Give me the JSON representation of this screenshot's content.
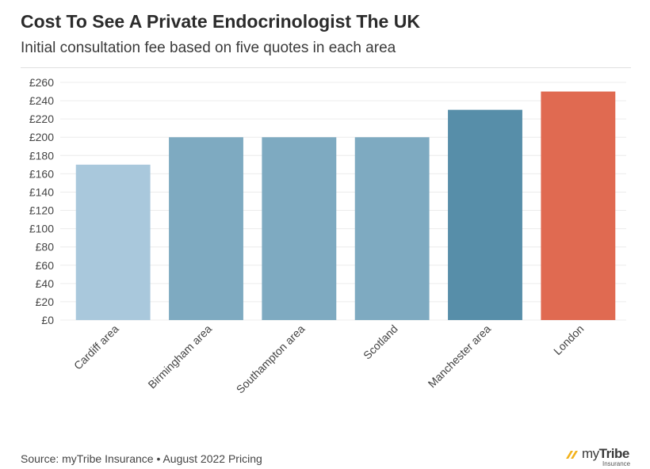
{
  "header": {
    "title": "Cost To See A Private Endocrinologist The UK",
    "subtitle": "Initial consultation fee based on five quotes in each area"
  },
  "footer": {
    "source": "Source: myTribe Insurance • August 2022 Pricing",
    "logo_brand_prefix": "my",
    "logo_brand_suffix": "Tribe",
    "logo_sub": "Insurance"
  },
  "chart_data": {
    "type": "bar",
    "title": "Cost To See A Private Endocrinologist The UK",
    "subtitle": "Initial consultation fee based on five quotes in each area",
    "xlabel": "",
    "ylabel": "",
    "categories": [
      "Cardiff area",
      "Birmingham area",
      "Southampton area",
      "Scotland",
      "Manchester area",
      "London"
    ],
    "values": [
      170,
      200,
      200,
      200,
      230,
      250
    ],
    "bar_colors": [
      "#a9c8dc",
      "#7eaac1",
      "#7eaac1",
      "#7eaac1",
      "#578ea9",
      "#e06a51"
    ],
    "ylim": [
      0,
      260
    ],
    "yticks": [
      0,
      20,
      40,
      60,
      80,
      100,
      120,
      140,
      160,
      180,
      200,
      220,
      240,
      260
    ],
    "ytick_labels": [
      "£0",
      "£20",
      "£40",
      "£60",
      "£80",
      "£100",
      "£120",
      "£140",
      "£160",
      "£180",
      "£200",
      "£220",
      "£240",
      "£260"
    ],
    "grid": true,
    "legend": "none"
  }
}
